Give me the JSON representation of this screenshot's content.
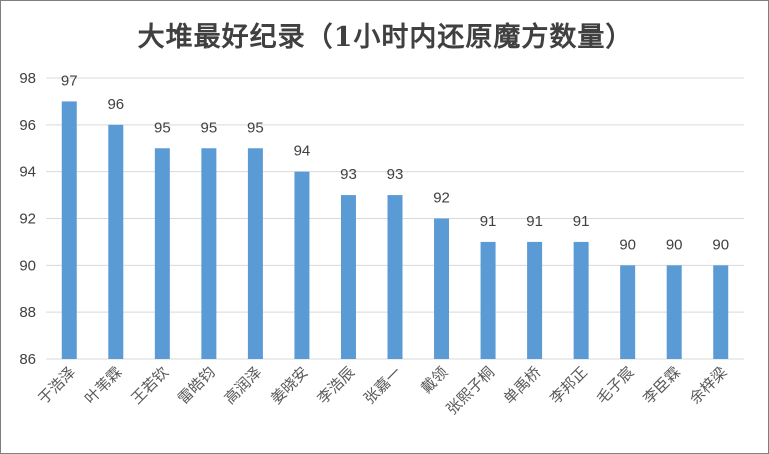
{
  "chart_data": {
    "type": "bar",
    "title": "大堆最好纪录（1小时内还原魔方数量）",
    "categories": [
      "于浩泽",
      "叶苇霖",
      "王若钦",
      "雷皓钧",
      "高润泽",
      "姜晓安",
      "李浩辰",
      "张嘉一",
      "戴领",
      "张熙子桐",
      "单禹桥",
      "李邦正",
      "毛子宸",
      "李臣霖",
      "余梓梁"
    ],
    "values": [
      97,
      96,
      95,
      95,
      95,
      94,
      93,
      93,
      92,
      91,
      91,
      91,
      90,
      90,
      90
    ],
    "yticks": [
      "86",
      "88",
      "90",
      "92",
      "94",
      "96",
      "98"
    ],
    "ylim": [
      86,
      98
    ],
    "xlabel": "",
    "ylabel": "",
    "grid": true,
    "bar_color": "#5b9bd5",
    "grid_color": "#d9d9d9"
  }
}
